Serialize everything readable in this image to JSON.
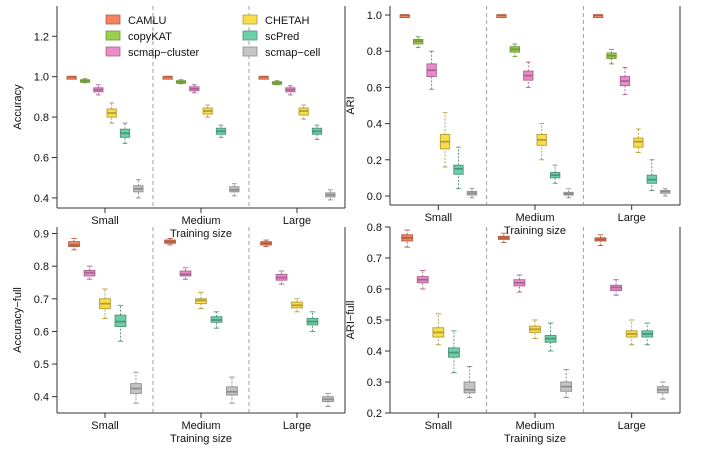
{
  "colors": {
    "CAMLU": "#f4845f",
    "copyKAT": "#9ccf4e",
    "scmap-cluster": "#e98bc9",
    "CHETAH": "#f9dc4a",
    "scPred": "#6ccfaa",
    "scmap-cell": "#c4c4c4"
  },
  "legend": {
    "items": [
      "CAMLU",
      "copyKAT",
      "scmap−cluster",
      "CHETAH",
      "scPred",
      "scmap−cell"
    ]
  },
  "chart_data": [
    {
      "type": "box",
      "ylabel": "Accuracy",
      "xlabel": "Training size",
      "categories": [
        "Small",
        "Medium",
        "Large"
      ],
      "ylim": [
        0.35,
        1.35
      ],
      "yticks": [
        "0.4",
        "0.6",
        "0.8",
        "1.0",
        "1.2"
      ],
      "ytick_values": [
        0.4,
        0.6,
        0.8,
        1.0,
        1.2
      ],
      "series": [
        {
          "name": "CAMLU",
          "boxes": [
            [
              1.0,
              1.0,
              1.0,
              1.0,
              1.0
            ],
            [
              1.0,
              1.0,
              1.0,
              1.0,
              1.0
            ],
            [
              1.0,
              1.0,
              1.0,
              1.0,
              1.0
            ]
          ]
        },
        {
          "name": "copyKAT",
          "boxes": [
            [
              0.97,
              0.975,
              0.98,
              0.985,
              0.99
            ],
            [
              0.965,
              0.97,
              0.975,
              0.98,
              0.985
            ],
            [
              0.96,
              0.965,
              0.97,
              0.975,
              0.98
            ]
          ]
        },
        {
          "name": "scmap-cluster",
          "boxes": [
            [
              0.91,
              0.925,
              0.935,
              0.945,
              0.96
            ],
            [
              0.92,
              0.93,
              0.94,
              0.95,
              0.96
            ],
            [
              0.91,
              0.925,
              0.935,
              0.945,
              0.955
            ]
          ]
        },
        {
          "name": "CHETAH",
          "boxes": [
            [
              0.77,
              0.8,
              0.82,
              0.84,
              0.87
            ],
            [
              0.8,
              0.815,
              0.83,
              0.845,
              0.86
            ],
            [
              0.79,
              0.81,
              0.83,
              0.845,
              0.86
            ]
          ]
        },
        {
          "name": "scPred",
          "boxes": [
            [
              0.67,
              0.7,
              0.72,
              0.74,
              0.77
            ],
            [
              0.7,
              0.715,
              0.73,
              0.745,
              0.76
            ],
            [
              0.69,
              0.715,
              0.73,
              0.745,
              0.76
            ]
          ]
        },
        {
          "name": "scmap-cell",
          "boxes": [
            [
              0.4,
              0.43,
              0.445,
              0.46,
              0.49
            ],
            [
              0.41,
              0.43,
              0.44,
              0.455,
              0.47
            ],
            [
              0.39,
              0.405,
              0.415,
              0.425,
              0.44
            ]
          ]
        }
      ]
    },
    {
      "type": "box",
      "ylabel": "ARI",
      "xlabel": "Training size",
      "categories": [
        "Small",
        "Medium",
        "Large"
      ],
      "ylim": [
        -0.05,
        1.05
      ],
      "yticks": [
        "0.0",
        "0.2",
        "0.4",
        "0.6",
        "0.8",
        "1.0"
      ],
      "ytick_values": [
        0.0,
        0.2,
        0.4,
        0.6,
        0.8,
        1.0
      ],
      "series": [
        {
          "name": "CAMLU",
          "boxes": [
            [
              1.0,
              1.0,
              1.0,
              1.0,
              1.0
            ],
            [
              1.0,
              1.0,
              1.0,
              1.0,
              1.0
            ],
            [
              1.0,
              1.0,
              1.0,
              1.0,
              1.0
            ]
          ]
        },
        {
          "name": "copyKAT",
          "boxes": [
            [
              0.82,
              0.84,
              0.855,
              0.865,
              0.88
            ],
            [
              0.77,
              0.795,
              0.81,
              0.825,
              0.84
            ],
            [
              0.73,
              0.76,
              0.775,
              0.79,
              0.81
            ]
          ]
        },
        {
          "name": "scmap-cluster",
          "boxes": [
            [
              0.59,
              0.66,
              0.695,
              0.73,
              0.8
            ],
            [
              0.6,
              0.64,
              0.665,
              0.69,
              0.74
            ],
            [
              0.56,
              0.61,
              0.635,
              0.66,
              0.71
            ]
          ]
        },
        {
          "name": "CHETAH",
          "boxes": [
            [
              0.16,
              0.26,
              0.3,
              0.34,
              0.46
            ],
            [
              0.2,
              0.28,
              0.31,
              0.34,
              0.4
            ],
            [
              0.24,
              0.27,
              0.3,
              0.32,
              0.37
            ]
          ]
        },
        {
          "name": "scPred",
          "boxes": [
            [
              0.04,
              0.12,
              0.15,
              0.17,
              0.27
            ],
            [
              0.07,
              0.1,
              0.115,
              0.13,
              0.17
            ],
            [
              0.03,
              0.07,
              0.09,
              0.115,
              0.2
            ]
          ]
        },
        {
          "name": "scmap-cell",
          "boxes": [
            [
              -0.01,
              0.005,
              0.015,
              0.025,
              0.04
            ],
            [
              -0.01,
              0.005,
              0.012,
              0.02,
              0.04
            ],
            [
              0.0,
              0.015,
              0.025,
              0.03,
              0.04
            ]
          ]
        }
      ]
    },
    {
      "type": "box",
      "ylabel": "Accuracy−full",
      "xlabel": "Training size",
      "categories": [
        "Small",
        "Medium",
        "Large"
      ],
      "ylim": [
        0.35,
        0.92
      ],
      "yticks": [
        "0.4",
        "0.5",
        "0.6",
        "0.7",
        "0.8",
        "0.9"
      ],
      "ytick_values": [
        0.4,
        0.5,
        0.6,
        0.7,
        0.8,
        0.9
      ],
      "series": [
        {
          "name": "CAMLU",
          "boxes": [
            [
              0.85,
              0.86,
              0.865,
              0.875,
              0.885
            ],
            [
              0.865,
              0.87,
              0.875,
              0.88,
              0.885
            ],
            [
              0.86,
              0.865,
              0.87,
              0.875,
              0.88
            ]
          ]
        },
        {
          "name": "scmap-cluster",
          "boxes": [
            [
              0.76,
              0.77,
              0.78,
              0.787,
              0.8
            ],
            [
              0.76,
              0.77,
              0.775,
              0.785,
              0.795
            ],
            [
              0.745,
              0.757,
              0.765,
              0.775,
              0.785
            ]
          ]
        },
        {
          "name": "CHETAH",
          "boxes": [
            [
              0.64,
              0.67,
              0.685,
              0.7,
              0.73
            ],
            [
              0.67,
              0.685,
              0.695,
              0.7,
              0.72
            ],
            [
              0.66,
              0.672,
              0.68,
              0.69,
              0.7
            ]
          ]
        },
        {
          "name": "scPred",
          "boxes": [
            [
              0.57,
              0.615,
              0.63,
              0.65,
              0.68
            ],
            [
              0.61,
              0.628,
              0.635,
              0.645,
              0.66
            ],
            [
              0.6,
              0.62,
              0.63,
              0.64,
              0.66
            ]
          ]
        },
        {
          "name": "scmap-cell",
          "boxes": [
            [
              0.38,
              0.41,
              0.425,
              0.44,
              0.475
            ],
            [
              0.38,
              0.405,
              0.415,
              0.43,
              0.46
            ],
            [
              0.37,
              0.385,
              0.392,
              0.4,
              0.41
            ]
          ]
        }
      ]
    },
    {
      "type": "box",
      "ylabel": "ARI−full",
      "xlabel": "Training size",
      "categories": [
        "Small",
        "Medium",
        "Large"
      ],
      "ylim": [
        0.2,
        0.8
      ],
      "yticks": [
        "0.2",
        "0.3",
        "0.4",
        "0.5",
        "0.6",
        "0.7",
        "0.8"
      ],
      "ytick_values": [
        0.2,
        0.3,
        0.4,
        0.5,
        0.6,
        0.7,
        0.8
      ],
      "series": [
        {
          "name": "CAMLU",
          "boxes": [
            [
              0.735,
              0.755,
              0.765,
              0.775,
              0.79
            ],
            [
              0.75,
              0.76,
              0.765,
              0.77,
              0.78
            ],
            [
              0.74,
              0.755,
              0.76,
              0.765,
              0.775
            ]
          ]
        },
        {
          "name": "scmap-cluster",
          "boxes": [
            [
              0.6,
              0.62,
              0.63,
              0.64,
              0.66
            ],
            [
              0.59,
              0.61,
              0.62,
              0.63,
              0.645
            ],
            [
              0.58,
              0.595,
              0.605,
              0.612,
              0.63
            ]
          ]
        },
        {
          "name": "CHETAH",
          "boxes": [
            [
              0.42,
              0.445,
              0.46,
              0.475,
              0.52
            ],
            [
              0.44,
              0.46,
              0.47,
              0.48,
              0.5
            ],
            [
              0.42,
              0.445,
              0.455,
              0.465,
              0.5
            ]
          ]
        },
        {
          "name": "scPred",
          "boxes": [
            [
              0.33,
              0.38,
              0.395,
              0.41,
              0.465
            ],
            [
              0.4,
              0.428,
              0.44,
              0.45,
              0.49
            ],
            [
              0.42,
              0.445,
              0.455,
              0.465,
              0.49
            ]
          ]
        },
        {
          "name": "scmap-cell",
          "boxes": [
            [
              0.25,
              0.265,
              0.275,
              0.3,
              0.35
            ],
            [
              0.25,
              0.27,
              0.285,
              0.3,
              0.34
            ],
            [
              0.245,
              0.265,
              0.275,
              0.285,
              0.3
            ]
          ]
        }
      ]
    }
  ]
}
